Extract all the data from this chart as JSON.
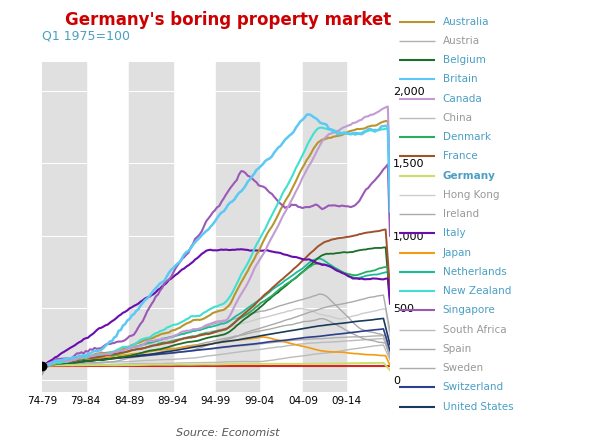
{
  "title": "Germany's boring property market",
  "subtitle": "Q1 1975=100",
  "source": "Source: Economist",
  "title_color": "#cc0000",
  "subtitle_color": "#4a9fc4",
  "background_color": "#ffffff",
  "ylim": [
    -80,
    2200
  ],
  "yticks": [
    0,
    500,
    1000,
    1500,
    2000
  ],
  "xtick_labels": [
    "74-79",
    "79-84",
    "84-89",
    "89-94",
    "94-99",
    "99-04",
    "04-09",
    "09-14"
  ],
  "countries": [
    "Australia",
    "Austria",
    "Belgium",
    "Britain",
    "Canada",
    "China",
    "Denmark",
    "France",
    "Germany",
    "Hong Kong",
    "Ireland",
    "Italy",
    "Japan",
    "Netherlands",
    "New Zealand",
    "Singapore",
    "South Africa",
    "Spain",
    "Sweden",
    "Switzerland",
    "United States"
  ],
  "country_colors": {
    "Australia": "#b8962e",
    "Austria": "#b0b0b0",
    "Belgium": "#1a6e2a",
    "Britain": "#5bc8f5",
    "Canada": "#c39bd3",
    "China": "#bbbbbb",
    "Denmark": "#27ae60",
    "France": "#a0522d",
    "Germany": "#c8e06a",
    "Hong Kong": "#cccccc",
    "Ireland": "#aaaaaa",
    "Italy": "#6a0dad",
    "Japan": "#f39c12",
    "Netherlands": "#1abc9c",
    "New Zealand": "#40e0d0",
    "Singapore": "#9b59b6",
    "South Africa": "#bbbbbb",
    "Spain": "#aaaaaa",
    "Sweden": "#aaaaaa",
    "Switzerland": "#2c3e8c",
    "United States": "#1a3a5c"
  },
  "country_bold": [
    "Germany"
  ],
  "legend_text_colors": {
    "Australia": "#4a9fc4",
    "Austria": "#999999",
    "Belgium": "#4a9fc4",
    "Britain": "#4a9fc4",
    "Canada": "#4a9fc4",
    "China": "#999999",
    "Denmark": "#4a9fc4",
    "France": "#4a9fc4",
    "Germany": "#4a9fc4",
    "Hong Kong": "#999999",
    "Ireland": "#999999",
    "Italy": "#4a9fc4",
    "Japan": "#4a9fc4",
    "Netherlands": "#4a9fc4",
    "New Zealand": "#4a9fc4",
    "Singapore": "#4a9fc4",
    "South Africa": "#999999",
    "Spain": "#999999",
    "Sweden": "#999999",
    "Switzerland": "#4a9fc4",
    "United States": "#4a9fc4"
  },
  "faded_countries": [
    "Austria",
    "China",
    "Hong Kong",
    "Ireland",
    "South Africa",
    "Spain",
    "Sweden"
  ]
}
